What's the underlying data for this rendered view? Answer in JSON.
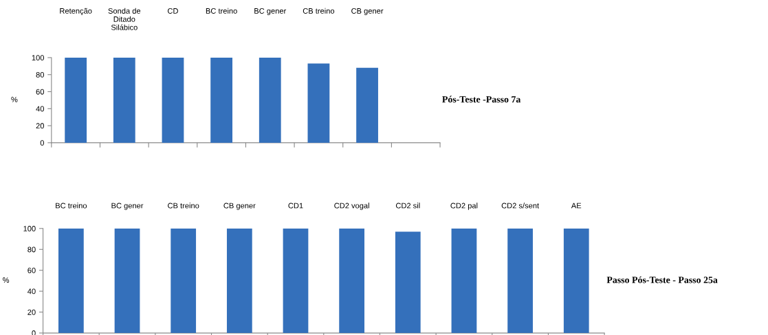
{
  "chart_data": [
    {
      "type": "bar",
      "title": "Pós-Teste -Passo 7a",
      "ylabel": "%",
      "categories": [
        "Retenção",
        "Sonda de\nDitado\nSilábico",
        "CD",
        "BC treino",
        "BC gener",
        "CB treino",
        "CB gener",
        null
      ],
      "values": [
        100,
        100,
        100,
        100,
        100,
        93,
        88,
        null
      ],
      "color": "#3470bb",
      "ylim": [
        0,
        100
      ],
      "yticks": [
        0,
        20,
        40,
        60,
        80,
        100
      ]
    },
    {
      "type": "bar",
      "title": "Passo Pós-Teste - Passo 25a",
      "ylabel": "%",
      "categories": [
        "BC treino",
        "BC gener",
        "CB treino",
        "CB gener",
        "CD1",
        "CD2 vogal",
        "CD2 sil",
        "CD2 pal",
        "CD2 s/sent",
        "AE"
      ],
      "values": [
        100,
        100,
        100,
        100,
        100,
        100,
        97,
        100,
        100,
        100
      ],
      "color": "#3470bb",
      "ylim": [
        0,
        100
      ],
      "yticks": [
        0,
        20,
        40,
        60,
        80,
        100
      ]
    }
  ]
}
